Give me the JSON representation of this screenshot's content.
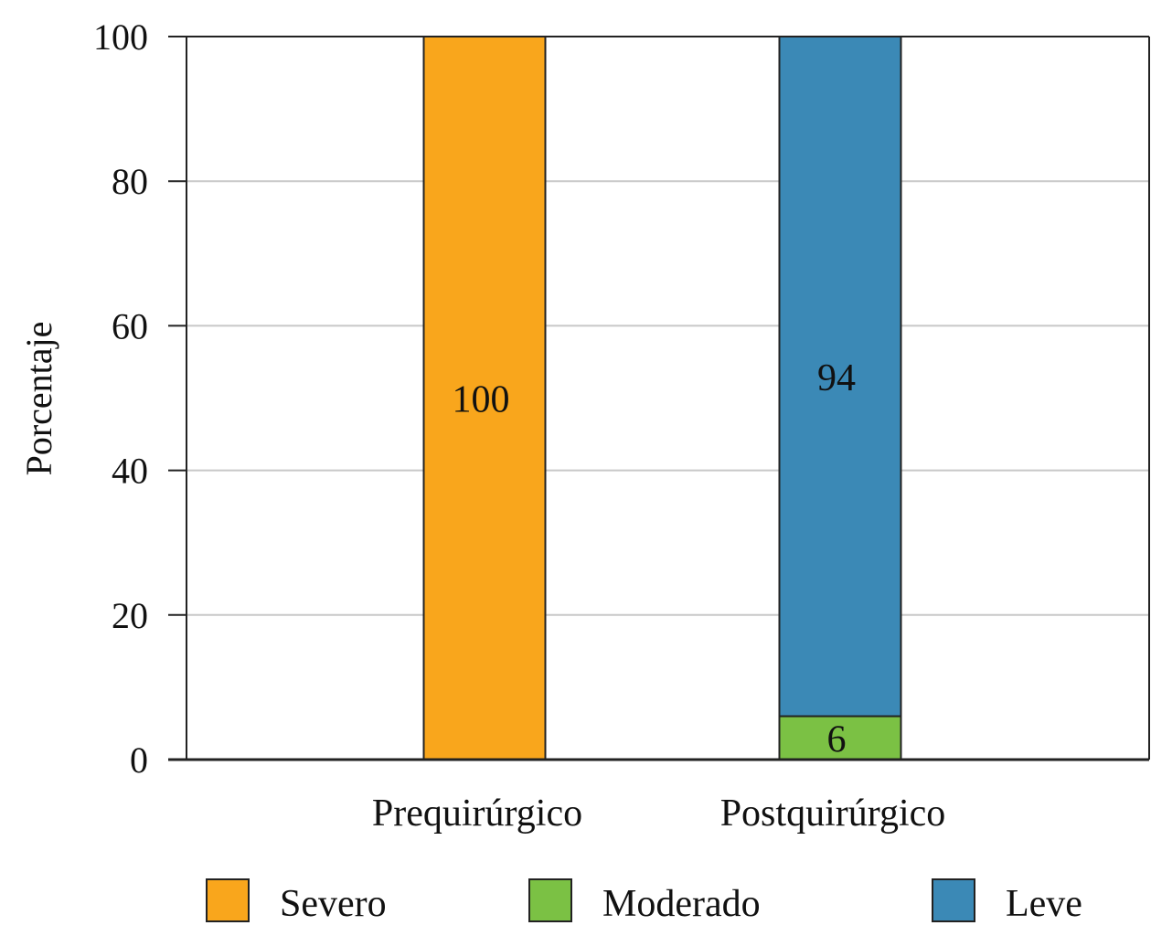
{
  "chart_data": {
    "type": "bar",
    "stacked": true,
    "title": "",
    "xlabel": "",
    "ylabel": "Porcentaje",
    "ylim": [
      0,
      100
    ],
    "yticks": [
      0,
      20,
      40,
      60,
      80,
      100
    ],
    "grid": true,
    "legend_position": "bottom",
    "categories": [
      "Prequirúrgico",
      "Postquirúrgico"
    ],
    "series": [
      {
        "name": "Severo",
        "values": [
          100,
          0
        ],
        "color": "#F9A61C"
      },
      {
        "name": "Moderado",
        "values": [
          0,
          6
        ],
        "color": "#7BC144"
      },
      {
        "name": "Leve",
        "values": [
          0,
          94
        ],
        "color": "#3B89B6"
      }
    ],
    "bar_labels": [
      {
        "category": "Prequirúrgico",
        "series": "Severo",
        "text": "100"
      },
      {
        "category": "Postquirúrgico",
        "series": "Moderado",
        "text": "6"
      },
      {
        "category": "Postquirúrgico",
        "series": "Leve",
        "text": "94"
      }
    ]
  }
}
